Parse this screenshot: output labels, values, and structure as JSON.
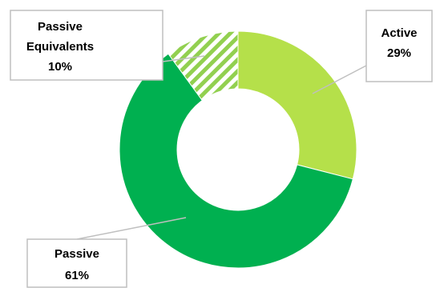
{
  "chart_data": {
    "type": "pie",
    "variant": "donut",
    "title": "",
    "slices": [
      {
        "label_lines": [
          "Active"
        ],
        "value": 29,
        "value_text": "29%",
        "color": "#b5e04a",
        "pattern": "solid"
      },
      {
        "label_lines": [
          "Passive"
        ],
        "value": 61,
        "value_text": "61%",
        "color": "#00b050",
        "pattern": "solid"
      },
      {
        "label_lines": [
          "Passive",
          "Equivalents"
        ],
        "value": 10,
        "value_text": "10%",
        "color": "#92d050",
        "pattern": "diagonal-stripes"
      }
    ],
    "legend": "none",
    "data_labels": "callouts"
  }
}
